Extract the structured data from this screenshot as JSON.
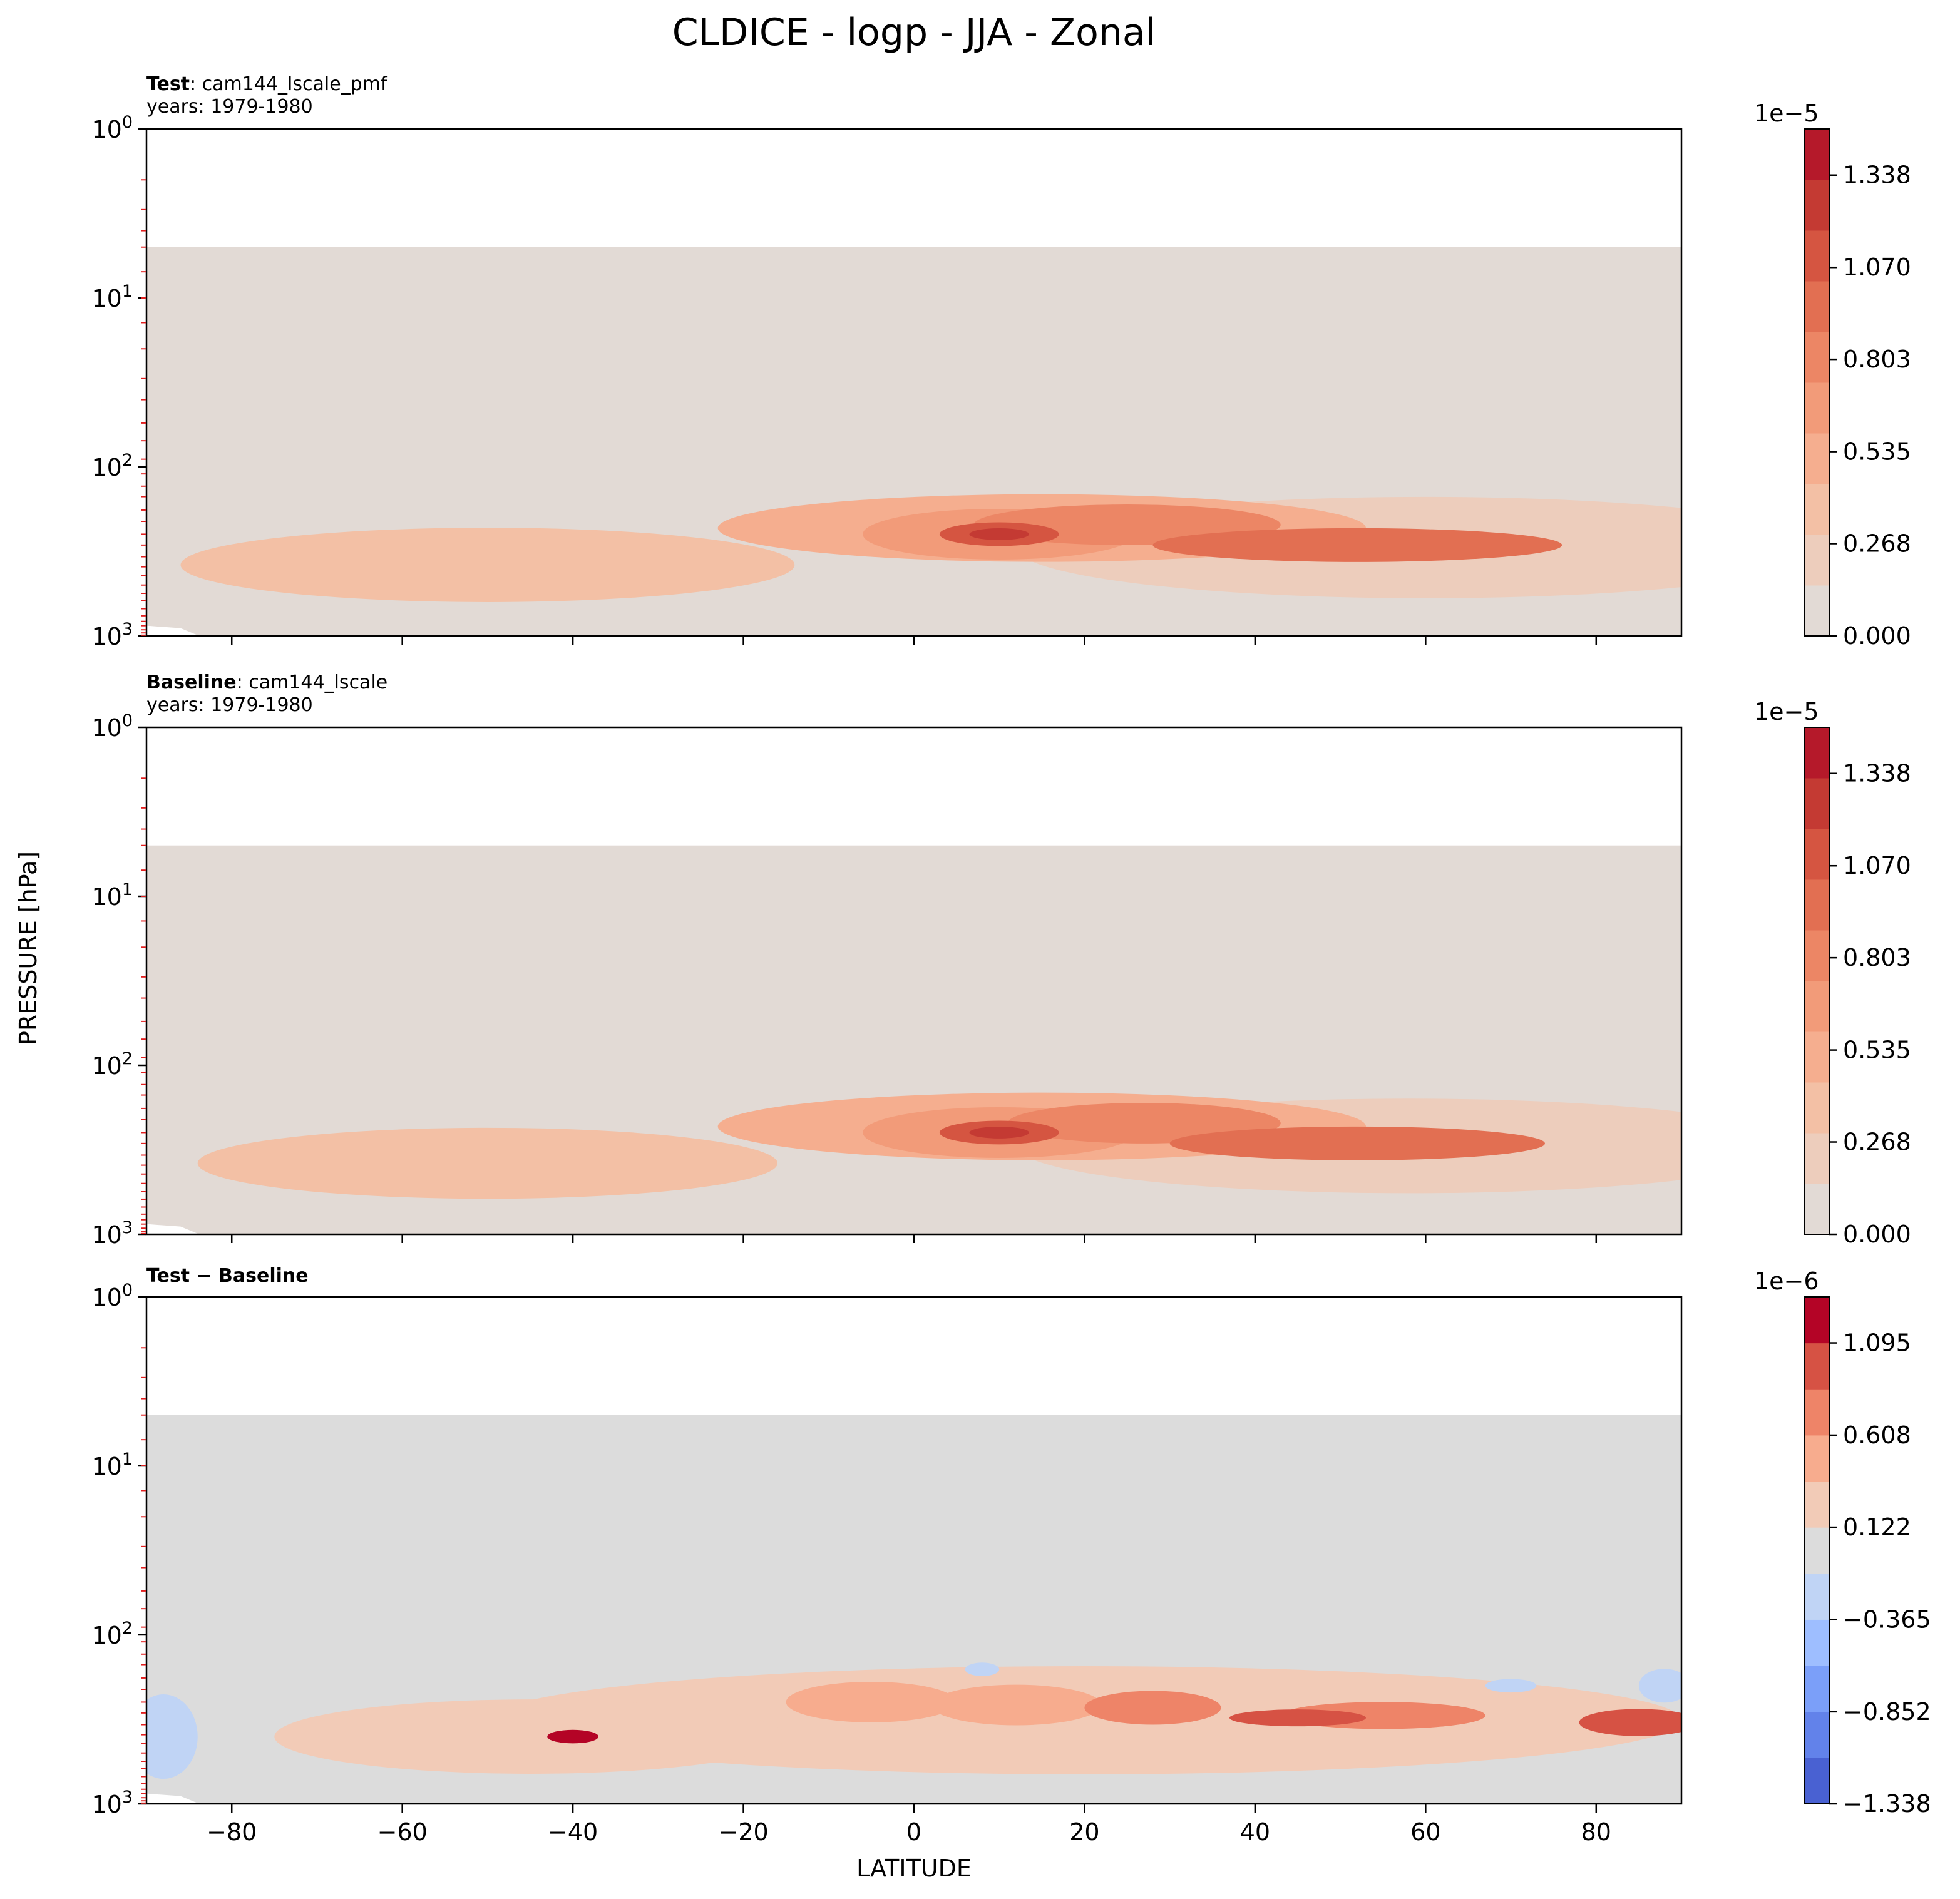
{
  "figure": {
    "title": "CLDICE - logp - JJA - Zonal",
    "xlabel": "LATITUDE",
    "ylabel": "PRESSURE [hPa]"
  },
  "chart_data": [
    {
      "type": "contour",
      "panel": "test",
      "title_bold": "Test",
      "title_sep": ": ",
      "title_rest": "cam144_lscale_pmf",
      "subtitle": "years: 1979-1980",
      "xlim": [
        -90,
        90
      ],
      "ylim": [
        1000,
        1
      ],
      "yscale": "log",
      "x_ticks": [
        -80,
        -60,
        -40,
        -20,
        0,
        20,
        40,
        60,
        80
      ],
      "y_ticks": [
        {
          "base": "10",
          "exp": "0"
        },
        {
          "base": "10",
          "exp": "1"
        },
        {
          "base": "10",
          "exp": "2"
        },
        {
          "base": "10",
          "exp": "3"
        }
      ],
      "colorbar": {
        "offset_text": "1e−5",
        "tick_labels": [
          "0.000",
          "0.268",
          "0.535",
          "0.803",
          "1.070",
          "1.338"
        ],
        "tick_values": [
          0,
          0.268,
          0.535,
          0.803,
          1.07,
          1.338
        ],
        "range": [
          0,
          1.472
        ],
        "colors": [
          "#e2dad5",
          "#edcdbc",
          "#f3c0a5",
          "#f5ae8f",
          "#f29b79",
          "#ec8665",
          "#e26f52",
          "#d55541",
          "#c43a33",
          "#b5192a"
        ]
      },
      "features": [
        {
          "label": "max near 10N, 250 hPa",
          "lat": 10,
          "p": 250,
          "level": 1.4
        },
        {
          "label": "northern band",
          "lat_range": [
            -12,
            90
          ],
          "p_range": [
            130,
            450
          ]
        },
        {
          "label": "southern band",
          "lat_range": [
            -75,
            -25
          ],
          "p_range": [
            240,
            660
          ]
        }
      ]
    },
    {
      "type": "contour",
      "panel": "baseline",
      "title_bold": "Baseline",
      "title_sep": ": ",
      "title_rest": "cam144_lscale",
      "subtitle": "years: 1979-1980",
      "xlim": [
        -90,
        90
      ],
      "ylim": [
        1000,
        1
      ],
      "yscale": "log",
      "x_ticks": [
        -80,
        -60,
        -40,
        -20,
        0,
        20,
        40,
        60,
        80
      ],
      "y_ticks": [
        {
          "base": "10",
          "exp": "0"
        },
        {
          "base": "10",
          "exp": "1"
        },
        {
          "base": "10",
          "exp": "2"
        },
        {
          "base": "10",
          "exp": "3"
        }
      ],
      "colorbar": {
        "offset_text": "1e−5",
        "tick_labels": [
          "0.000",
          "0.268",
          "0.535",
          "0.803",
          "1.070",
          "1.338"
        ],
        "tick_values": [
          0,
          0.268,
          0.535,
          0.803,
          1.07,
          1.338
        ],
        "range": [
          0,
          1.472
        ],
        "colors": [
          "#e2dad5",
          "#edcdbc",
          "#f3c0a5",
          "#f5ae8f",
          "#f29b79",
          "#ec8665",
          "#e26f52",
          "#d55541",
          "#c43a33",
          "#b5192a"
        ]
      },
      "features": [
        {
          "label": "max near 10N, 250 hPa",
          "lat": 10,
          "p": 250,
          "level": 1.4
        },
        {
          "label": "northern band",
          "lat_range": [
            -10,
            85
          ],
          "p_range": [
            130,
            450
          ]
        },
        {
          "label": "southern band",
          "lat_range": [
            -75,
            -28
          ],
          "p_range": [
            240,
            660
          ]
        }
      ]
    },
    {
      "type": "contour",
      "panel": "difference",
      "title_bold": "Test − Baseline",
      "title_sep": "",
      "title_rest": "",
      "subtitle": "",
      "xlim": [
        -90,
        90
      ],
      "ylim": [
        1000,
        1
      ],
      "yscale": "log",
      "x_ticks": [
        -80,
        -60,
        -40,
        -20,
        0,
        20,
        40,
        60,
        80
      ],
      "y_ticks": [
        {
          "base": "10",
          "exp": "0"
        },
        {
          "base": "10",
          "exp": "1"
        },
        {
          "base": "10",
          "exp": "2"
        },
        {
          "base": "10",
          "exp": "3"
        }
      ],
      "colorbar": {
        "offset_text": "1e−6",
        "tick_labels": [
          "−1.338",
          "−0.852",
          "−0.365",
          "0.122",
          "0.608",
          "1.095"
        ],
        "tick_values": [
          -1.338,
          -0.852,
          -0.365,
          0.122,
          0.608,
          1.095
        ],
        "range": [
          -1.338,
          1.338
        ],
        "colors": [
          "#4961d2",
          "#6282ea",
          "#7b9ff9",
          "#9ebeff",
          "#c0d4f5",
          "#dcdcdc",
          "#f2cbb7",
          "#f7ac8e",
          "#ee8468",
          "#d65244",
          "#b40426"
        ]
      },
      "features": [
        {
          "label": "positive band",
          "lat_range": [
            -68,
            90
          ],
          "p_range": [
            180,
            700
          ]
        },
        {
          "label": "positive max near 85N",
          "lat": 85,
          "p": 380,
          "level": 1.2
        },
        {
          "label": "negative patch near 88S",
          "lat": -88,
          "p": 400,
          "level": -0.25
        }
      ]
    }
  ]
}
